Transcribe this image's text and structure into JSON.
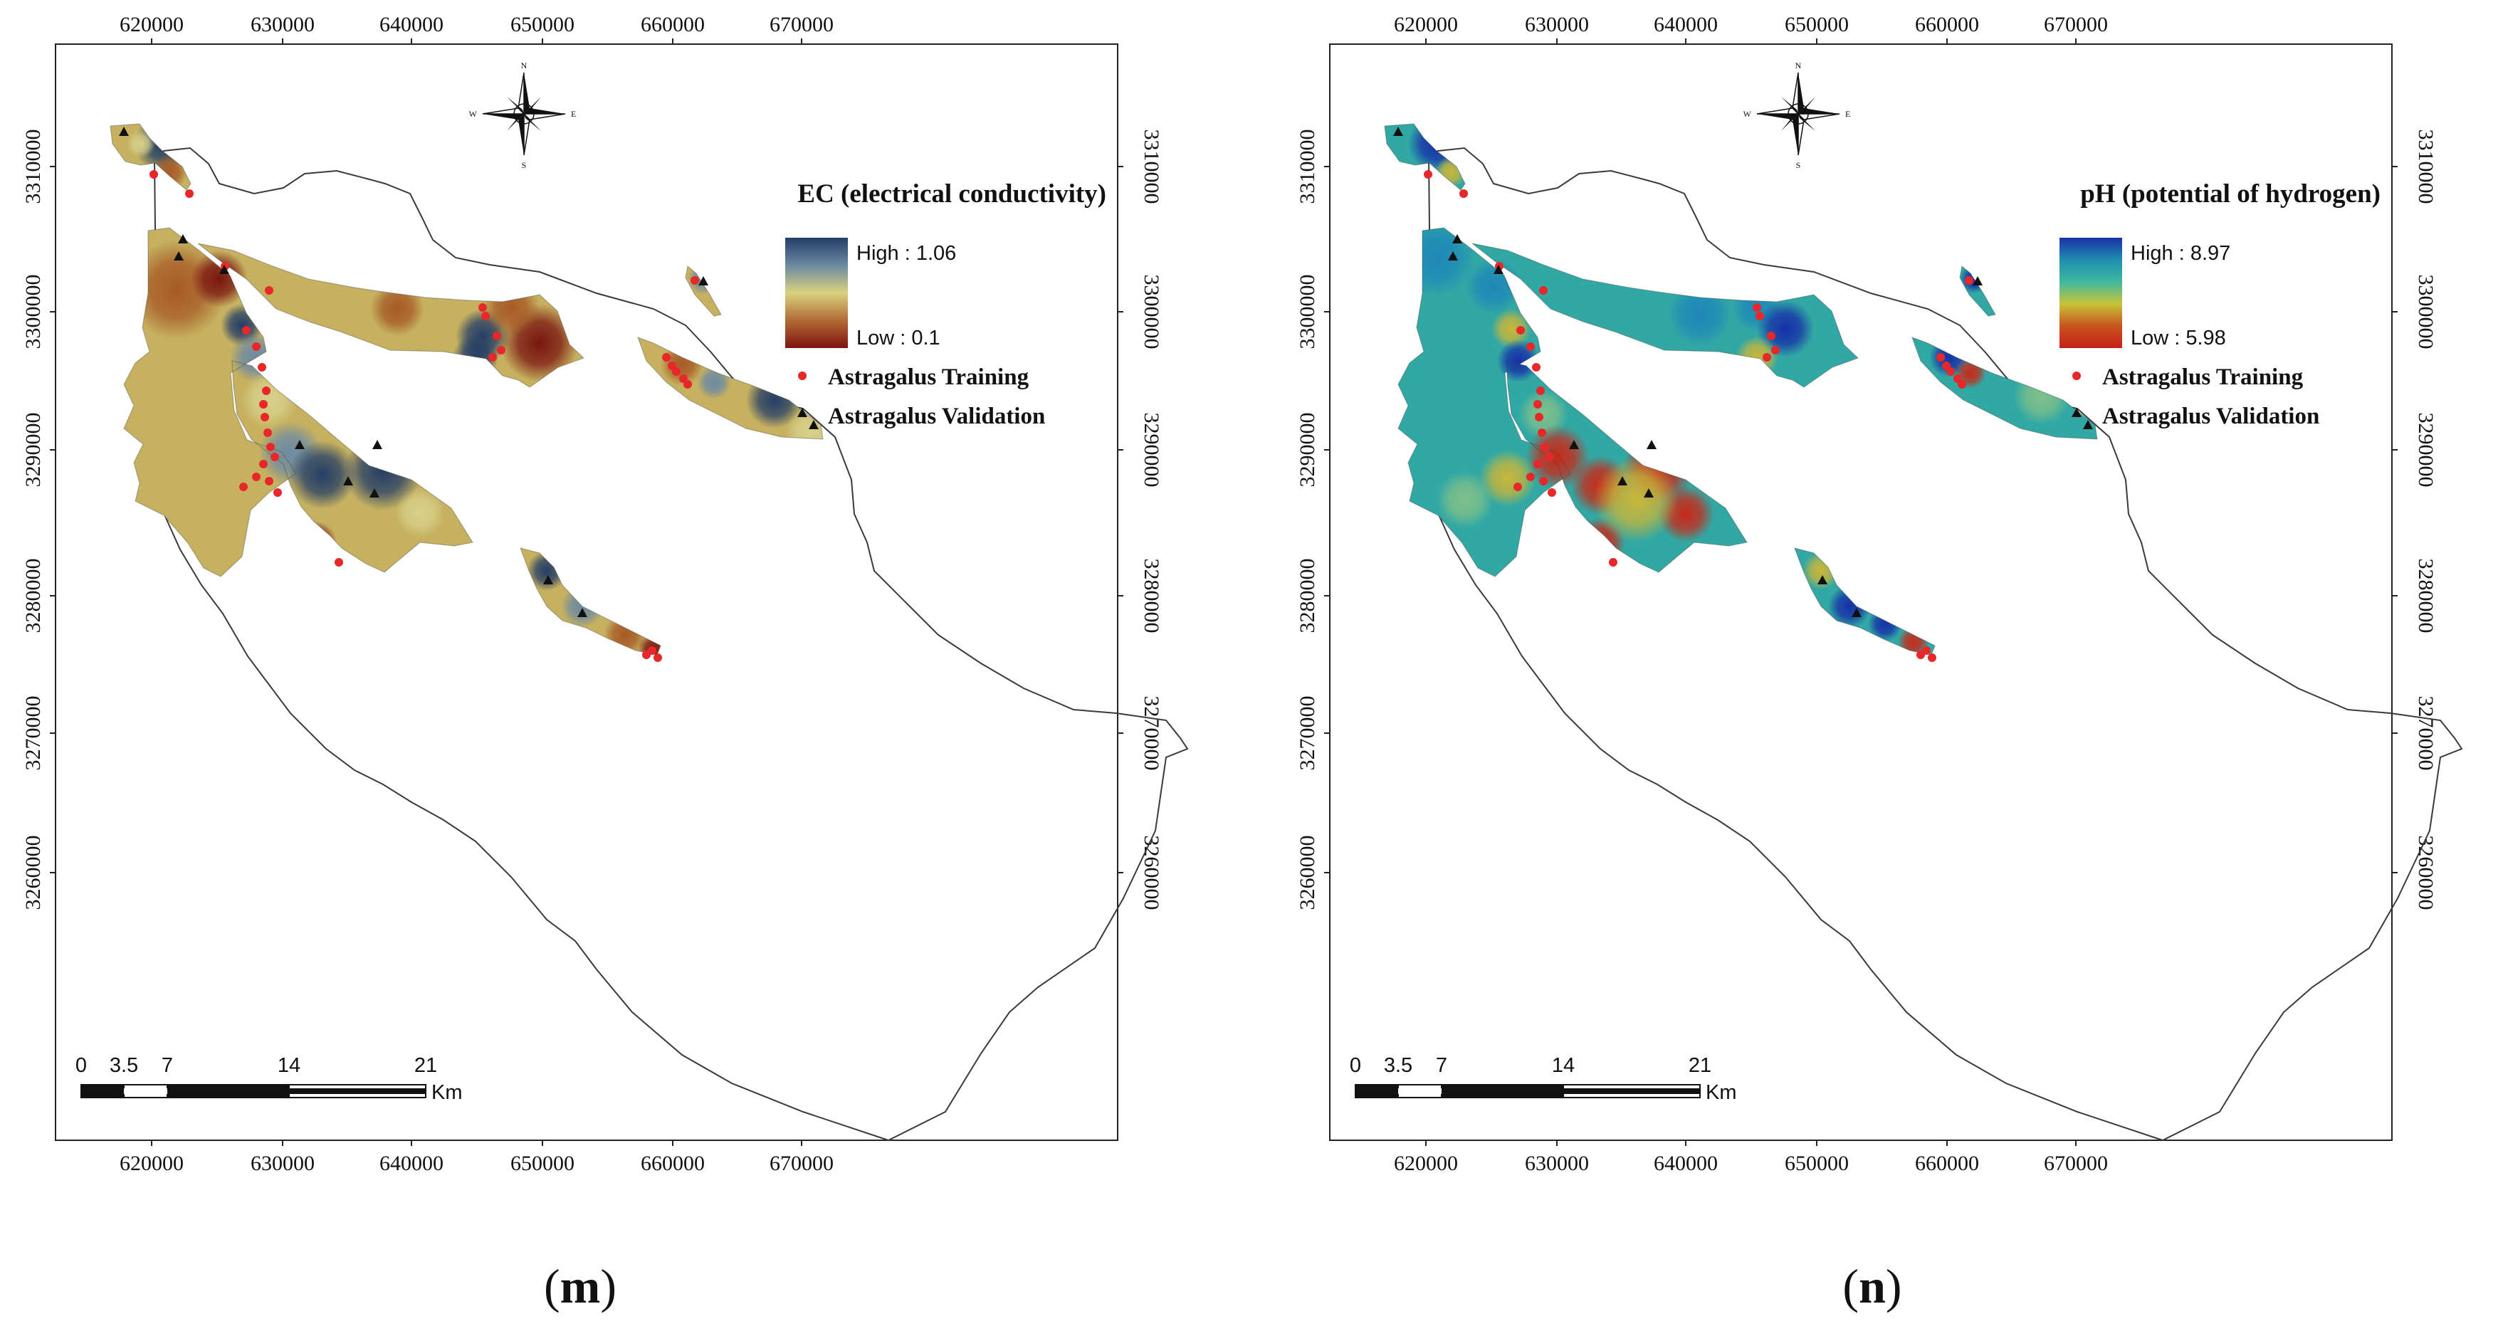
{
  "panels": [
    {
      "id": "m",
      "caption_open": "(",
      "caption_letter": "m",
      "caption_close": ")",
      "legend": {
        "title": "EC (electrical conductivity)",
        "high": "High : 1.06",
        "low": "Low : 0.1",
        "ramp": [
          "#213f69",
          "#6b8aa0",
          "#d9d27e",
          "#b36a35",
          "#7e1410"
        ]
      },
      "points_legend": {
        "training": "Astragalus Training",
        "validation": "Astragalus Validation"
      },
      "palette": {
        "base": "#c6b160",
        "cold": "#243e66",
        "cool": "#6c8aa2",
        "warm": "#a75a25",
        "hot": "#7a1610",
        "pale": "#d7d18a"
      }
    },
    {
      "id": "n",
      "caption_open": "(",
      "caption_letter": "n",
      "caption_close": ")",
      "legend": {
        "title": "pH (potential of hydrogen)",
        "high": "High : 8.97",
        "low": "Low : 5.98",
        "ramp": [
          "#1a2fa8",
          "#1f8fb0",
          "#3fb8a0",
          "#c8c437",
          "#c8541f",
          "#c62018"
        ]
      },
      "points_legend": {
        "training": "Astragalus Training",
        "validation": "Astragalus Validation"
      },
      "palette": {
        "base": "#31a8a4",
        "cold": "#1630a8",
        "cool": "#1f88b8",
        "warm": "#c9b63a",
        "hot": "#c72a1a",
        "pale": "#7fc08a"
      }
    }
  ],
  "x_ticks": [
    "620000",
    "630000",
    "640000",
    "650000",
    "660000",
    "670000"
  ],
  "y_ticks": [
    "3310000",
    "3300000",
    "3290000",
    "3280000",
    "3270000",
    "3260000"
  ],
  "scale_bar": {
    "labels": [
      "0",
      "3.5",
      "7",
      "14",
      "21"
    ],
    "unit": "Km"
  },
  "north_arrow": {
    "n": "N",
    "e": "E",
    "s": "S",
    "w": "W"
  },
  "colors": {
    "training_point": "#e8272a",
    "validation_point": "#111111",
    "outline": "#3a3a3a"
  }
}
